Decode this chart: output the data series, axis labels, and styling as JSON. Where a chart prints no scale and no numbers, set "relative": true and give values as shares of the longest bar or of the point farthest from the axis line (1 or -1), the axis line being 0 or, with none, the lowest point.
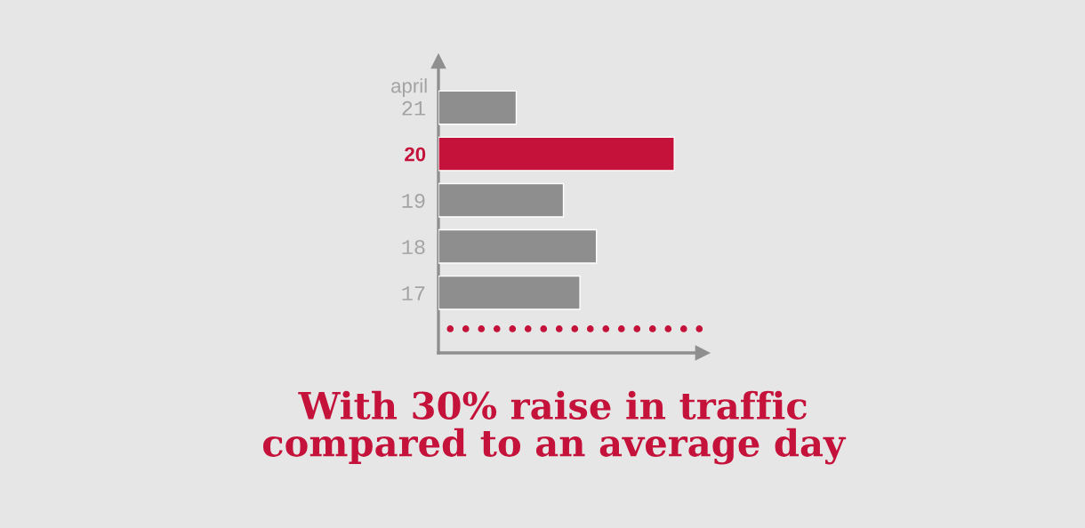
{
  "chart_data": {
    "type": "bar",
    "orientation": "horizontal",
    "relative": true,
    "ylabel": "april",
    "categories": [
      "21",
      "20",
      "19",
      "18",
      "17"
    ],
    "values": [
      0.33,
      1,
      0.53,
      0.67,
      0.6
    ],
    "colors": [
      "#8e8e8e",
      "#c4123a",
      "#8e8e8e",
      "#8e8e8e",
      "#8e8e8e"
    ],
    "annotations": [
      "With 30% raise in traffic\ncompared to an average day"
    ]
  }
}
